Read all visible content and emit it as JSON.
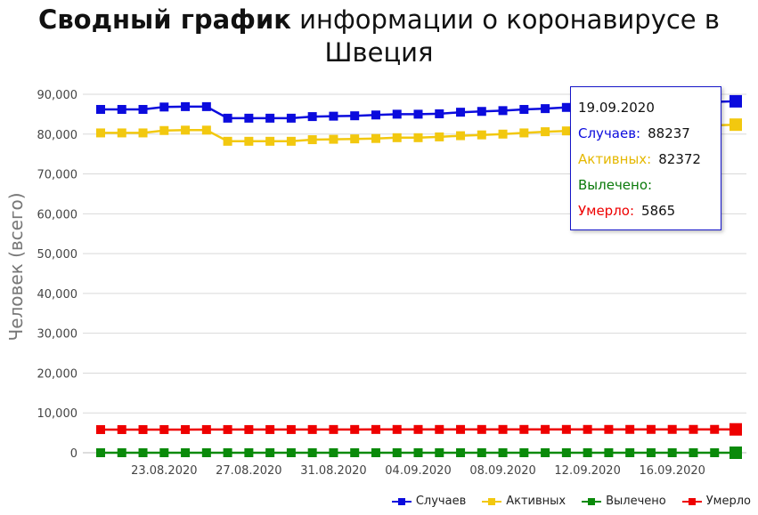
{
  "title": {
    "bold": "Сводный график",
    "rest_line1": " информации о коронавирусе в",
    "line2": "Швеция"
  },
  "chart_data": {
    "type": "line",
    "title": "Сводный график информации о коронавирусе в Швеция",
    "ylabel": "Человек (всего)",
    "xlabel": "",
    "ylim": [
      0,
      90000
    ],
    "yticks": [
      "0",
      "10,000",
      "20,000",
      "30,000",
      "40,000",
      "50,000",
      "60,000",
      "70,000",
      "80,000",
      "90,000"
    ],
    "ytick_values": [
      0,
      10000,
      20000,
      30000,
      40000,
      50000,
      60000,
      70000,
      80000,
      90000
    ],
    "x": [
      "20.08.2020",
      "21.08.2020",
      "22.08.2020",
      "23.08.2020",
      "24.08.2020",
      "25.08.2020",
      "26.08.2020",
      "27.08.2020",
      "28.08.2020",
      "29.08.2020",
      "30.08.2020",
      "31.08.2020",
      "01.09.2020",
      "02.09.2020",
      "03.09.2020",
      "04.09.2020",
      "05.09.2020",
      "06.09.2020",
      "07.09.2020",
      "08.09.2020",
      "09.09.2020",
      "10.09.2020",
      "11.09.2020",
      "12.09.2020",
      "13.09.2020",
      "14.09.2020",
      "15.09.2020",
      "16.09.2020",
      "17.09.2020",
      "18.09.2020",
      "19.09.2020"
    ],
    "xtick_labels": [
      "23.08.2020",
      "27.08.2020",
      "31.08.2020",
      "04.09.2020",
      "08.09.2020",
      "12.09.2020",
      "16.09.2020"
    ],
    "grid": true,
    "legend_position": "bottom-right",
    "series": [
      {
        "name": "Случаев",
        "color": "#0b0bdd",
        "values": [
          86200,
          86200,
          86200,
          86800,
          86900,
          86900,
          84000,
          84000,
          84000,
          84000,
          84400,
          84500,
          84600,
          84800,
          85000,
          85000,
          85100,
          85500,
          85700,
          85900,
          86200,
          86400,
          86700,
          86900,
          87100,
          87400,
          87600,
          87800,
          88000,
          88100,
          88237
        ]
      },
      {
        "name": "Активных",
        "color": "#f2c80f",
        "values": [
          80300,
          80300,
          80300,
          80900,
          81000,
          81000,
          78200,
          78200,
          78200,
          78200,
          78600,
          78700,
          78800,
          78900,
          79100,
          79100,
          79300,
          79600,
          79800,
          80000,
          80300,
          80600,
          80800,
          81000,
          81200,
          81500,
          81700,
          81900,
          82100,
          82200,
          82372
        ]
      },
      {
        "name": "Вылечено",
        "color": "#0a8a0a",
        "values": [
          0,
          0,
          0,
          0,
          0,
          0,
          0,
          0,
          0,
          0,
          0,
          0,
          0,
          0,
          0,
          0,
          0,
          0,
          0,
          0,
          0,
          0,
          0,
          0,
          0,
          0,
          0,
          0,
          0,
          0,
          0
        ]
      },
      {
        "name": "Умерло",
        "color": "#ee0000",
        "values": [
          5812,
          5813,
          5814,
          5815,
          5816,
          5820,
          5821,
          5821,
          5821,
          5822,
          5830,
          5835,
          5838,
          5840,
          5842,
          5843,
          5843,
          5845,
          5846,
          5848,
          5850,
          5851,
          5852,
          5853,
          5855,
          5857,
          5859,
          5860,
          5862,
          5863,
          5865
        ]
      }
    ]
  },
  "tooltip": {
    "date": "19.09.2020",
    "cases_label": "Случаев:",
    "cases_value": "88237",
    "active_label": "Активных:",
    "active_value": "82372",
    "recovered_label": "Вылечено:",
    "recovered_value": "",
    "deaths_label": "Умерло:",
    "deaths_value": "5865"
  },
  "legend": [
    "Случаев",
    "Активных",
    "Вылечено",
    "Умерло"
  ]
}
